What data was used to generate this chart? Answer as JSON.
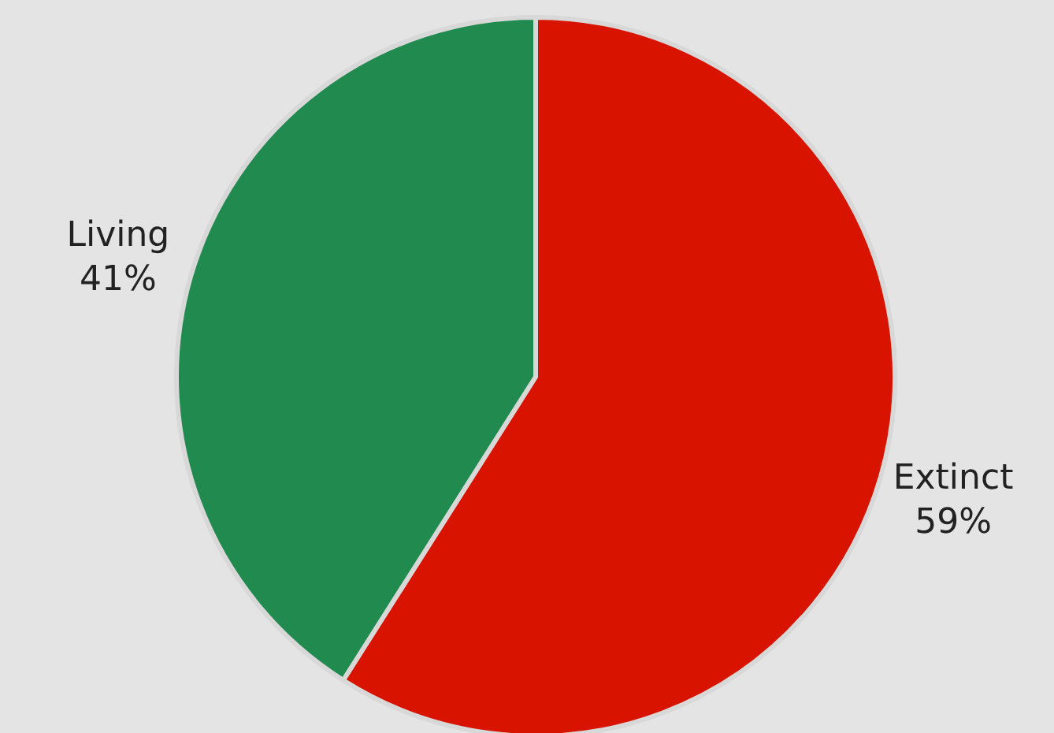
{
  "chart_data": {
    "type": "pie",
    "categories": [
      "Extinct",
      "Living"
    ],
    "values": [
      59,
      41
    ],
    "colors": [
      "#d81400",
      "#218a4f"
    ],
    "value_labels": [
      "59%",
      "41%"
    ]
  }
}
